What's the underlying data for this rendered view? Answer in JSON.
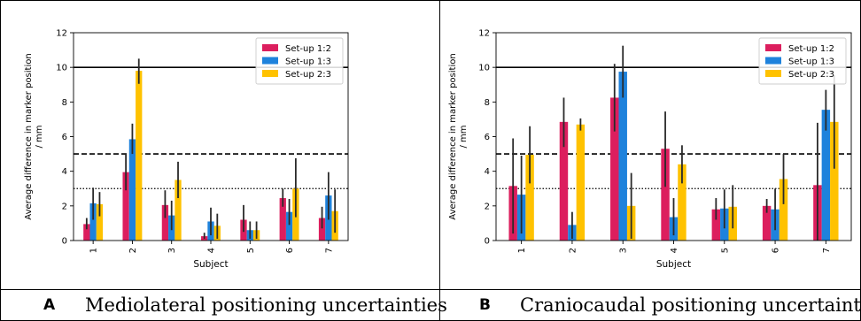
{
  "colors": {
    "setup_12": "#dc1e5e",
    "setup_13": "#1e82dc",
    "setup_23": "#ffc200",
    "error_bar": "#2a2a2a"
  },
  "panels": [
    {
      "letter": "A",
      "caption": "Mediolateral positioning uncertainties"
    },
    {
      "letter": "B",
      "caption": "Craniocaudal positioning uncertainties"
    }
  ],
  "chart_data": [
    {
      "type": "bar",
      "title": "",
      "xlabel": "Subject",
      "ylabel": "Average difference in marker position / mm",
      "ylabel_lines": [
        "Average difference in marker position",
        "/ mm"
      ],
      "ylim": [
        0,
        12
      ],
      "yticks": [
        0,
        2,
        4,
        6,
        8,
        10,
        12
      ],
      "categories": [
        "1",
        "2",
        "3",
        "4",
        "5",
        "6",
        "7"
      ],
      "legend_position": "top-right",
      "grid": false,
      "reference_lines": [
        {
          "y": 10,
          "style": "solid"
        },
        {
          "y": 5,
          "style": "dashed"
        },
        {
          "y": 3,
          "style": "dotted"
        }
      ],
      "series": [
        {
          "name": "Set-up 1:2",
          "color": "#dc1e5e",
          "values": [
            0.95,
            3.95,
            2.05,
            0.25,
            1.2,
            2.45,
            1.3
          ],
          "err_low": [
            0.65,
            2.9,
            1.3,
            0.1,
            0.5,
            1.95,
            0.7
          ],
          "err_high": [
            1.3,
            5.0,
            2.9,
            0.45,
            2.05,
            3.0,
            1.95
          ]
        },
        {
          "name": "Set-up 1:3",
          "color": "#1e82dc",
          "values": [
            2.15,
            5.85,
            1.45,
            1.1,
            0.6,
            1.65,
            2.6
          ],
          "err_low": [
            1.2,
            5.0,
            0.6,
            0.3,
            0.1,
            0.9,
            1.2
          ],
          "err_high": [
            3.05,
            6.75,
            2.3,
            1.9,
            1.1,
            2.4,
            3.95
          ]
        },
        {
          "name": "Set-up 2:3",
          "color": "#ffc200",
          "values": [
            2.1,
            9.8,
            3.5,
            0.85,
            0.6,
            3.0,
            1.7
          ],
          "err_low": [
            1.4,
            9.05,
            2.45,
            0.1,
            0.1,
            1.35,
            0.45
          ],
          "err_high": [
            2.8,
            10.5,
            4.55,
            1.55,
            1.1,
            4.75,
            2.95
          ]
        }
      ]
    },
    {
      "type": "bar",
      "title": "",
      "xlabel": "Subject",
      "ylabel": "Average difference in marker position / mm",
      "ylabel_lines": [
        "Average difference in marker position",
        "/ mm"
      ],
      "ylim": [
        0,
        12
      ],
      "yticks": [
        0,
        2,
        4,
        6,
        8,
        10,
        12
      ],
      "categories": [
        "1",
        "2",
        "3",
        "4",
        "5",
        "6",
        "7"
      ],
      "legend_position": "top-right",
      "grid": false,
      "reference_lines": [
        {
          "y": 10,
          "style": "solid"
        },
        {
          "y": 5,
          "style": "dashed"
        },
        {
          "y": 3,
          "style": "dotted"
        }
      ],
      "series": [
        {
          "name": "Set-up 1:2",
          "color": "#dc1e5e",
          "values": [
            3.15,
            6.85,
            8.25,
            5.3,
            1.8,
            2.0,
            3.2
          ],
          "err_low": [
            0.4,
            5.4,
            6.3,
            3.1,
            1.2,
            1.6,
            0.0
          ],
          "err_high": [
            5.9,
            8.25,
            10.2,
            7.45,
            2.45,
            2.4,
            6.8
          ]
        },
        {
          "name": "Set-up 1:3",
          "color": "#1e82dc",
          "values": [
            2.65,
            0.9,
            9.75,
            1.35,
            1.85,
            1.8,
            7.55
          ],
          "err_low": [
            0.4,
            0.1,
            8.25,
            0.3,
            0.7,
            0.6,
            6.35
          ],
          "err_high": [
            4.9,
            1.65,
            11.25,
            2.45,
            2.95,
            3.0,
            8.7
          ]
        },
        {
          "name": "Set-up 2:3",
          "color": "#ffc200",
          "values": [
            4.95,
            6.7,
            2.0,
            4.4,
            1.95,
            3.55,
            6.85
          ],
          "err_low": [
            3.3,
            6.35,
            0.1,
            3.3,
            0.7,
            2.1,
            4.15
          ],
          "err_high": [
            6.6,
            7.05,
            3.9,
            5.5,
            3.2,
            5.0,
            9.55
          ]
        }
      ]
    }
  ]
}
